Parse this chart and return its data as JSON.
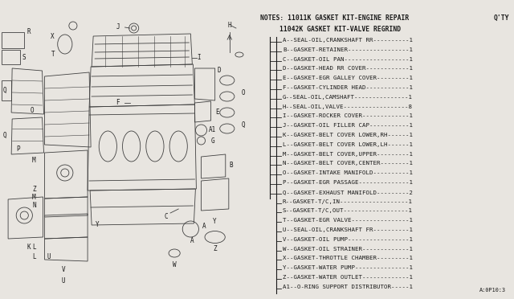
{
  "bg_color": "#e8e5e0",
  "title_note": "NOTES: 11011K GASKET KIT-ENGINE REPAIR",
  "qty_label": "Q'TY",
  "subkit_label": "11042K GASKET KIT-VALVE REGRIND",
  "parts": [
    [
      "A",
      "SEAL-OIL,CRANKSHAFT RR",
      "1"
    ],
    [
      "B",
      "GASKET-RETAINER",
      "1"
    ],
    [
      "C",
      "GASKET-OIL PAN",
      "1"
    ],
    [
      "D",
      "GASKET-HEAD RR COVER",
      "1"
    ],
    [
      "E",
      "GASKET-EGR GALLEY COVER",
      "1"
    ],
    [
      "F",
      "GASKET-CYLINDER HEAD",
      "1"
    ],
    [
      "G",
      "SEAL-OIL,CAMSHAFT",
      "1"
    ],
    [
      "H",
      "SEAL-OIL,VALVE",
      "8"
    ],
    [
      "I",
      "GASKET-ROCKER COVER",
      "1"
    ],
    [
      "J",
      "GASKET-OIL FILLER CAP",
      "1"
    ],
    [
      "K",
      "GASKET-BELT COVER LOWER,RH",
      "1"
    ],
    [
      "L",
      "GASKET-BELT COVER LOWER,LH",
      "1"
    ],
    [
      "M",
      "GASKET-BELT COVER,UPPER",
      "1"
    ],
    [
      "N",
      "GASKET-BELT COVER,CENTER",
      "1"
    ],
    [
      "O",
      "GASKET-INTAKE MANIFOLD",
      "1"
    ],
    [
      "P",
      "GASKET-EGR PASSAGE",
      "1"
    ],
    [
      "Q",
      "GASKET-EXHAUST MANIFOLD",
      "2"
    ],
    [
      "R",
      "GASKET-T/C,IN",
      "1"
    ],
    [
      "S",
      "GASKET-T/C,OUT",
      "1"
    ],
    [
      "T",
      "GASKET-EGR VALVE",
      "1"
    ],
    [
      "U",
      "SEAL-OIL,CRANKSHAFT FR",
      "1"
    ],
    [
      "V",
      "GASKET-OIL PUMP",
      "1"
    ],
    [
      "W",
      "GASKET-OIL STRAINER",
      "1"
    ],
    [
      "X",
      "GASKET-THROTTLE CHAMBER",
      "1"
    ],
    [
      "Y",
      "GASKET-WATER PUMP",
      "1"
    ],
    [
      "Z",
      "GASKET-WATER OUTLET",
      "1"
    ],
    [
      "A1",
      "O-RING SUPPORT DISTRIBUTOR",
      "1"
    ]
  ],
  "footer": "A:0P10:3",
  "dc": "#404040",
  "tc": "#1a1a1a",
  "fs": 5.8
}
